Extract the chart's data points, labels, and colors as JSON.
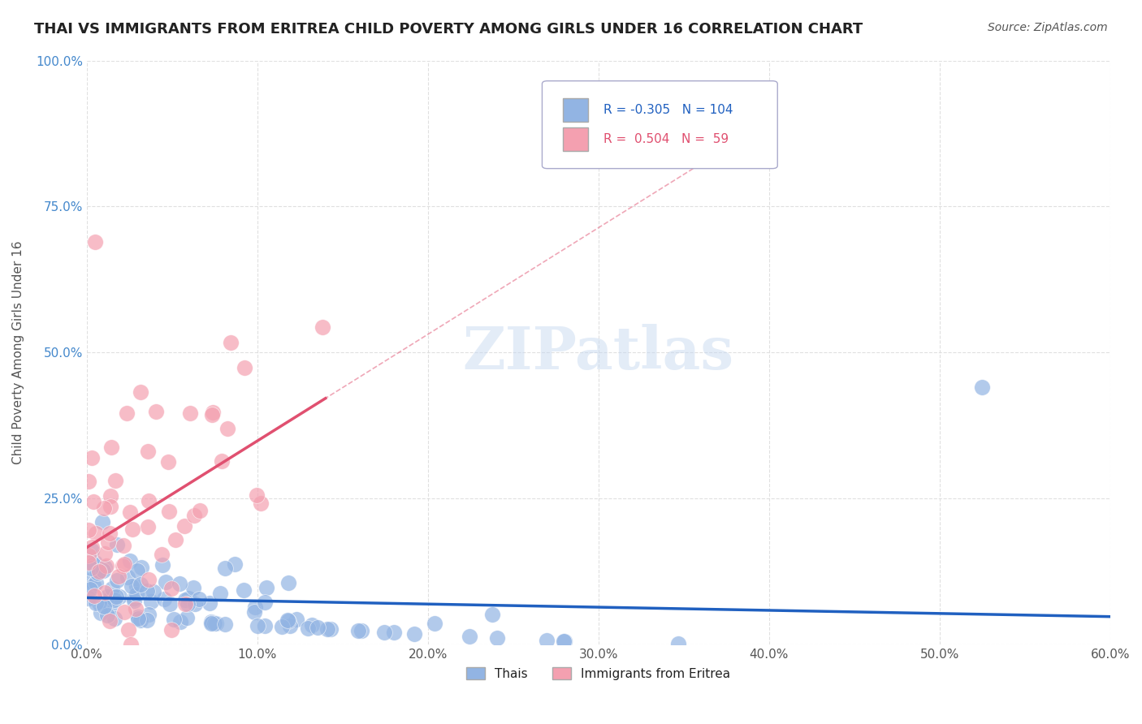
{
  "title": "THAI VS IMMIGRANTS FROM ERITREA CHILD POVERTY AMONG GIRLS UNDER 16 CORRELATION CHART",
  "source": "Source: ZipAtlas.com",
  "ylabel": "Child Poverty Among Girls Under 16",
  "xlabel": "",
  "blue_R": -0.305,
  "blue_N": 104,
  "pink_R": 0.504,
  "pink_N": 59,
  "blue_color": "#92b4e3",
  "pink_color": "#f4a0b0",
  "blue_line_color": "#2060c0",
  "pink_line_color": "#e05070",
  "legend1_label": "Thais",
  "legend2_label": "Immigrants from Eritrea",
  "xlim": [
    0.0,
    0.6
  ],
  "ylim": [
    0.0,
    1.0
  ],
  "xticks": [
    0.0,
    0.1,
    0.2,
    0.3,
    0.4,
    0.5,
    0.6
  ],
  "yticks": [
    0.0,
    0.25,
    0.5,
    0.75,
    1.0
  ],
  "watermark": "ZIPatlas",
  "title_fontsize": 13,
  "bg_color": "#ffffff"
}
